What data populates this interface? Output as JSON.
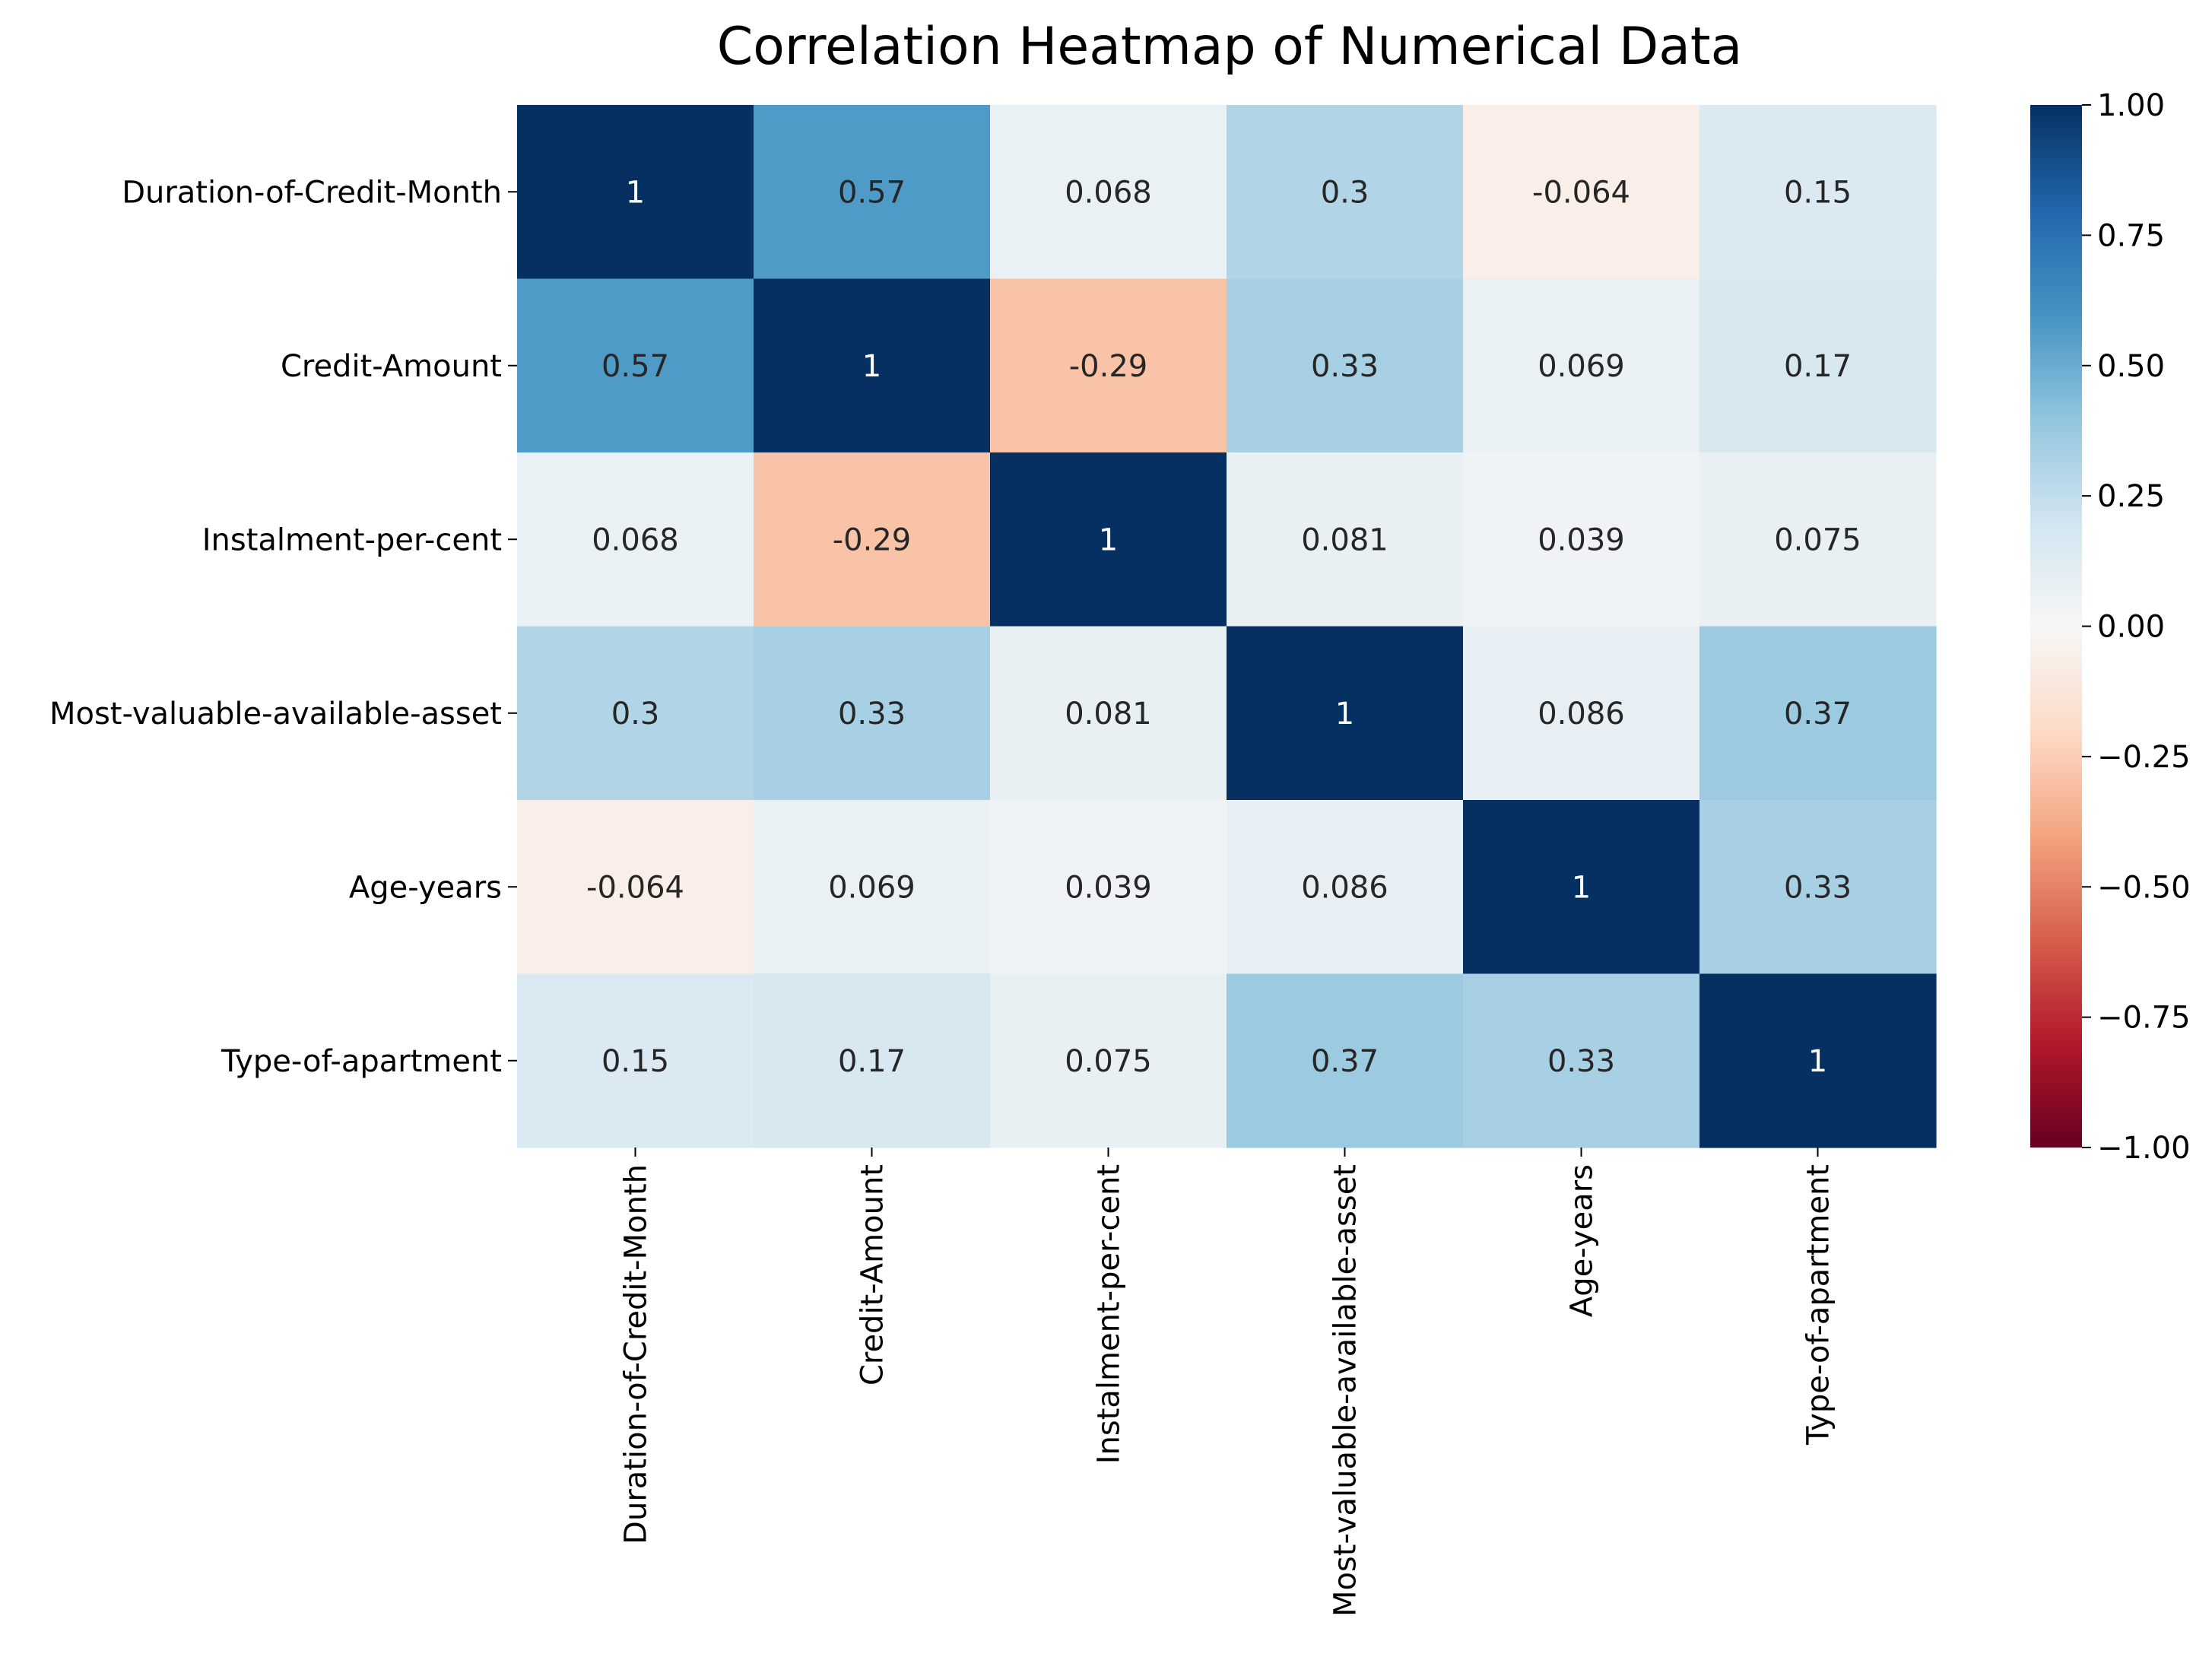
{
  "chart_data": {
    "type": "heatmap",
    "title": "Correlation Heatmap of Numerical Data",
    "x_labels": [
      "Duration-of-Credit-Month",
      "Credit-Amount",
      "Instalment-per-cent",
      "Most-valuable-available-asset",
      "Age-years",
      "Type-of-apartment"
    ],
    "y_labels": [
      "Duration-of-Credit-Month",
      "Credit-Amount",
      "Instalment-per-cent",
      "Most-valuable-available-asset",
      "Age-years",
      "Type-of-apartment"
    ],
    "values": [
      [
        1,
        0.57,
        0.068,
        0.3,
        -0.064,
        0.15
      ],
      [
        0.57,
        1,
        -0.29,
        0.33,
        0.069,
        0.17
      ],
      [
        0.068,
        -0.29,
        1,
        0.081,
        0.039,
        0.075
      ],
      [
        0.3,
        0.33,
        0.081,
        1,
        0.086,
        0.37
      ],
      [
        -0.064,
        0.069,
        0.039,
        0.086,
        1,
        0.33
      ],
      [
        0.15,
        0.17,
        0.075,
        0.37,
        0.33,
        1
      ]
    ],
    "value_labels": [
      [
        "1",
        "0.57",
        "0.068",
        "0.3",
        "-0.064",
        "0.15"
      ],
      [
        "0.57",
        "1",
        "-0.29",
        "0.33",
        "0.069",
        "0.17"
      ],
      [
        "0.068",
        "-0.29",
        "1",
        "0.081",
        "0.039",
        "0.075"
      ],
      [
        "0.3",
        "0.33",
        "0.081",
        "1",
        "0.086",
        "0.37"
      ],
      [
        "-0.064",
        "0.069",
        "0.039",
        "0.086",
        "1",
        "0.33"
      ],
      [
        "0.15",
        "0.17",
        "0.075",
        "0.37",
        "0.33",
        "1"
      ]
    ],
    "colorbar": {
      "colormap": "RdBu",
      "vmin": -1.0,
      "vmax": 1.0,
      "ticks": [
        1.0,
        0.75,
        0.5,
        0.25,
        0.0,
        -0.25,
        -0.5,
        -0.75,
        -1.0
      ],
      "tick_labels": [
        "1.00",
        "0.75",
        "0.50",
        "0.25",
        "0.00",
        "−0.25",
        "−0.50",
        "−0.75",
        "−1.00"
      ]
    },
    "colors": {
      "neg_extreme": "#67001f",
      "neutral": "#f7f7f7",
      "pos_extreme": "#053061"
    }
  }
}
